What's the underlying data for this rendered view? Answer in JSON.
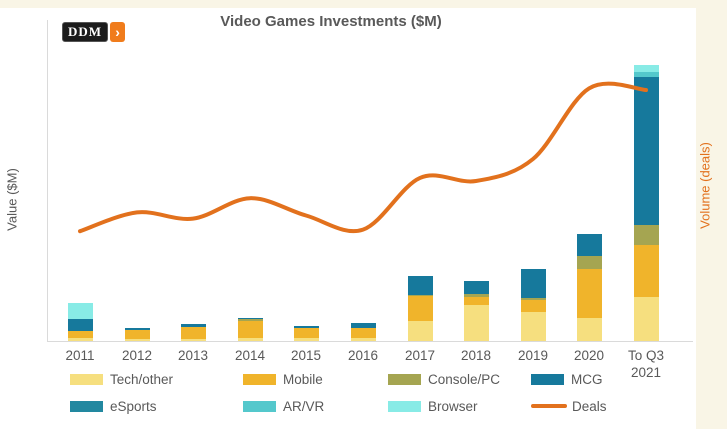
{
  "page": {
    "background": "#F9F5E6",
    "panel": "#FFFFFF"
  },
  "logo": {
    "text": "DDM",
    "chevron": "›"
  },
  "title": "Video Games Investments ($M)",
  "axes": {
    "left_label": "Value ($M)",
    "right_label": "Volume (deals)",
    "left_label_color": "#595959",
    "right_label_color": "#E2711D",
    "axis_line_color": "#DADADA",
    "tick_label_color": "#595959"
  },
  "colors": {
    "tech": "#F6DF7F",
    "mobile": "#F0B42B",
    "console": "#A5A551",
    "mcg": "#16799C",
    "esports": "#2288A0",
    "arvr": "#54C8CC",
    "browser": "#88EBE6",
    "deals": "#E2711D"
  },
  "chart_data": {
    "type": "bar",
    "subtype": "stacked-bars-with-secondary-axis-line",
    "title": "Video Games Investments ($M)",
    "xlabel": "",
    "ylabel": "Value ($M)",
    "y2label": "Volume (deals)",
    "categories": [
      "2011",
      "2012",
      "2013",
      "2014",
      "2015",
      "2016",
      "2017",
      "2018",
      "2019",
      "2020",
      "To Q3 2021"
    ],
    "tick_labels": [
      "2011",
      "2012",
      "2013",
      "2014",
      "2015",
      "2016",
      "2017",
      "2018",
      "2019",
      "2020",
      "To Q3\n2021"
    ],
    "series": [
      {
        "name": "Tech/other",
        "key": "tech",
        "values": [
          35,
          20,
          25,
          35,
          35,
          35,
          220,
          390,
          315,
          250,
          480
        ]
      },
      {
        "name": "Mobile",
        "key": "mobile",
        "values": [
          75,
          100,
          130,
          185,
          110,
          105,
          270,
          85,
          130,
          535,
          565
        ]
      },
      {
        "name": "Console/PC",
        "key": "console",
        "values": [
          0,
          0,
          0,
          20,
          0,
          0,
          10,
          35,
          20,
          140,
          215
        ]
      },
      {
        "name": "MCG",
        "key": "mcg",
        "values": [
          130,
          20,
          30,
          10,
          20,
          55,
          205,
          140,
          325,
          240,
          1620
        ]
      },
      {
        "name": "eSports",
        "key": "esports",
        "values": [
          0,
          0,
          0,
          0,
          0,
          0,
          0,
          0,
          0,
          0,
          0
        ]
      },
      {
        "name": "AR/VR",
        "key": "arvr",
        "values": [
          0,
          0,
          0,
          0,
          0,
          0,
          0,
          0,
          0,
          0,
          55
        ]
      },
      {
        "name": "Browser",
        "key": "browser",
        "values": [
          175,
          0,
          0,
          0,
          0,
          0,
          0,
          0,
          0,
          0,
          75
        ]
      }
    ],
    "line_series": {
      "name": "Deals",
      "axis": "right",
      "values": [
        350,
        410,
        390,
        455,
        400,
        355,
        520,
        510,
        580,
        805,
        800
      ]
    },
    "ylim": [
      0,
      3100
    ],
    "y2lim": [
      0,
      900
    ],
    "grid": false,
    "legend_position": "bottom",
    "note": "Neither axis shows numeric tick labels; all series values are visual estimates at a relative scale."
  },
  "legend": {
    "rows": [
      [
        {
          "key": "tech",
          "label": "Tech/other",
          "swatch": "box"
        },
        {
          "key": "mobile",
          "label": "Mobile",
          "swatch": "box"
        },
        {
          "key": "console",
          "label": "Console/PC",
          "swatch": "box"
        },
        {
          "key": "mcg",
          "label": "MCG",
          "swatch": "box"
        }
      ],
      [
        {
          "key": "esports",
          "label": "eSports",
          "swatch": "box"
        },
        {
          "key": "arvr",
          "label": "AR/VR",
          "swatch": "box"
        },
        {
          "key": "browser",
          "label": "Browser",
          "swatch": "box"
        },
        {
          "key": "deals",
          "label": "Deals",
          "swatch": "line"
        }
      ]
    ]
  }
}
